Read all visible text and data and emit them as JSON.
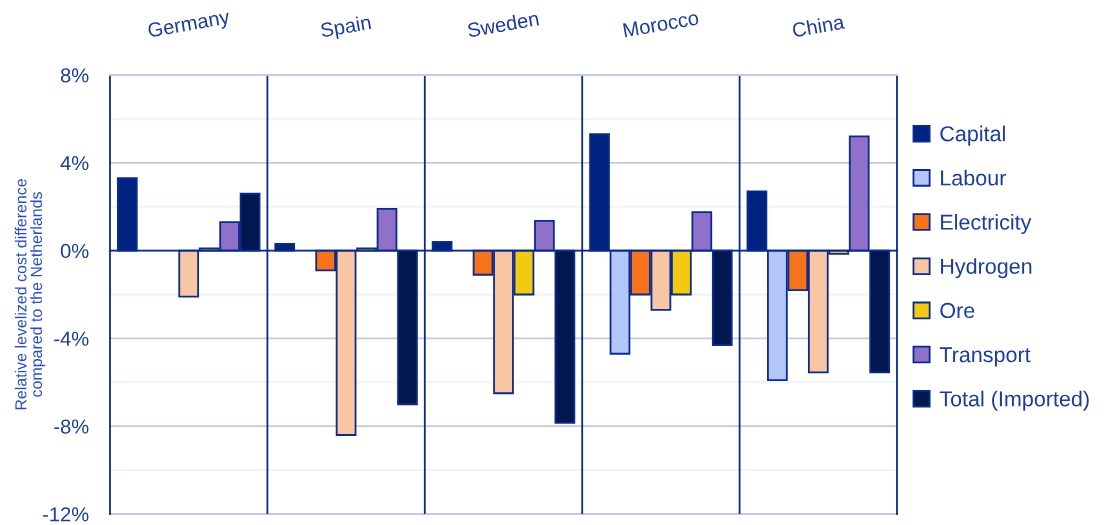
{
  "chart_data": {
    "type": "bar",
    "ylabel": "Relative levelized cost difference\ncompared to the Netherlands",
    "categories": [
      "Germany",
      "Spain",
      "Sweden",
      "Morocco",
      "China"
    ],
    "series": [
      {
        "name": "Capital",
        "color": "#002382",
        "values": [
          3.3,
          0.3,
          0.4,
          5.3,
          2.7
        ]
      },
      {
        "name": "Labour",
        "color": "#b4c7fc",
        "values": [
          null,
          null,
          null,
          -4.7,
          -5.9
        ]
      },
      {
        "name": "Electricity",
        "color": "#f4731b",
        "values": [
          null,
          -0.9,
          -1.1,
          -2.0,
          -1.8
        ]
      },
      {
        "name": "Hydrogen",
        "color": "#f9c6a3",
        "values": [
          -2.1,
          -8.4,
          -6.5,
          -2.7,
          -5.55
        ]
      },
      {
        "name": "Ore",
        "color": "#f4c914",
        "values": [
          0.1,
          0.1,
          -2.0,
          -2.0,
          -0.15
        ]
      },
      {
        "name": "Transport",
        "color": "#8f71c9",
        "values": [
          1.3,
          1.9,
          1.35,
          1.75,
          5.2
        ]
      },
      {
        "name": "Total (Imported)",
        "color": "#00184f",
        "values": [
          2.6,
          -7.0,
          -7.85,
          -4.3,
          -5.55
        ]
      }
    ],
    "ylim": [
      -12,
      8
    ],
    "yticks": [
      {
        "value": -12,
        "label": "-12%"
      },
      {
        "value": -10,
        "label": null
      },
      {
        "value": -8,
        "label": "-8%"
      },
      {
        "value": -6,
        "label": null
      },
      {
        "value": -4,
        "label": "-4%"
      },
      {
        "value": -2,
        "label": null
      },
      {
        "value": 0,
        "label": "0%"
      },
      {
        "value": 2,
        "label": null
      },
      {
        "value": 4,
        "label": "4%"
      },
      {
        "value": 6,
        "label": null
      },
      {
        "value": 8,
        "label": "8%"
      }
    ],
    "grid": true,
    "legend": "right"
  }
}
